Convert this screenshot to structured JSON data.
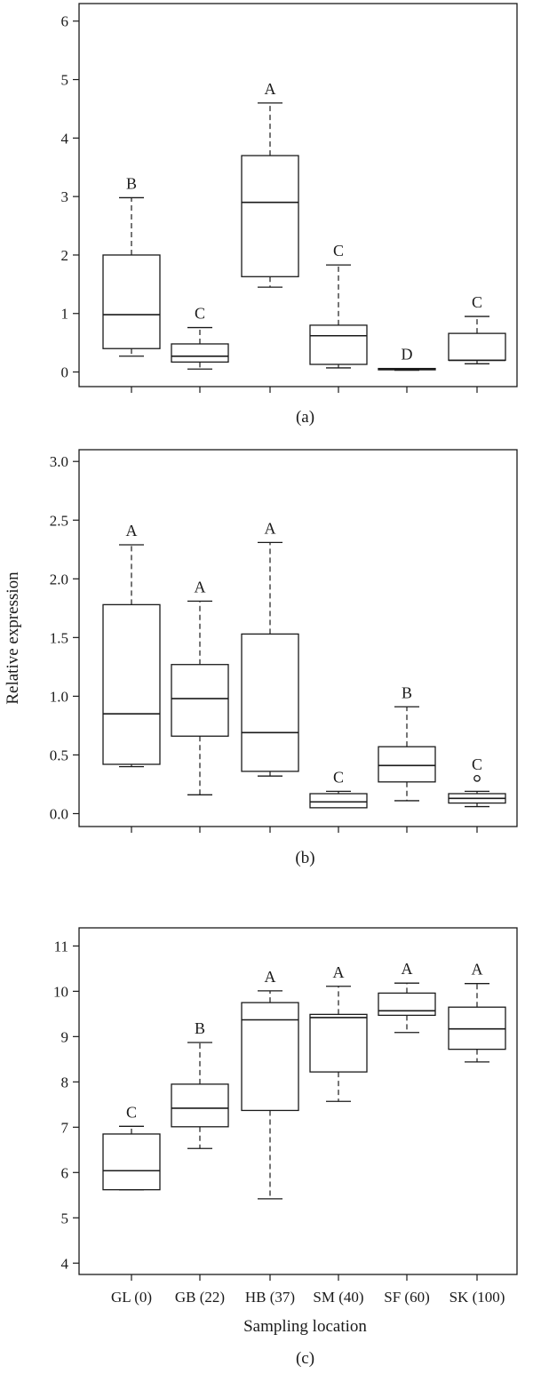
{
  "chart_data": [
    {
      "type": "box",
      "panel": "(a)",
      "ylim": [
        -0.25,
        6.3
      ],
      "yticks": [
        "0",
        "1",
        "2",
        "3",
        "4",
        "5",
        "6"
      ],
      "groups": [
        {
          "letter": "B",
          "whisker_low": 0.27,
          "q1": 0.4,
          "median": 0.98,
          "q3": 2.0,
          "whisker_high": 2.98,
          "outliers": []
        },
        {
          "letter": "C",
          "whisker_low": 0.05,
          "q1": 0.17,
          "median": 0.27,
          "q3": 0.48,
          "whisker_high": 0.76,
          "outliers": []
        },
        {
          "letter": "A",
          "whisker_low": 1.45,
          "q1": 1.63,
          "median": 2.9,
          "q3": 3.7,
          "whisker_high": 4.6,
          "outliers": []
        },
        {
          "letter": "C",
          "whisker_low": 0.07,
          "q1": 0.13,
          "median": 0.62,
          "q3": 0.8,
          "whisker_high": 1.83,
          "outliers": []
        },
        {
          "letter": "D",
          "whisker_low": 0.03,
          "q1": 0.04,
          "median": 0.05,
          "q3": 0.06,
          "whisker_high": 0.06,
          "outliers": []
        },
        {
          "letter": "C",
          "whisker_low": 0.14,
          "q1": 0.2,
          "median": 0.2,
          "q3": 0.66,
          "whisker_high": 0.95,
          "outliers": []
        }
      ]
    },
    {
      "type": "box",
      "panel": "(b)",
      "ylabel": "Relative expression",
      "ylim": [
        -0.11,
        3.1
      ],
      "yticks": [
        "0.0",
        "0.5",
        "1.0",
        "1.5",
        "2.0",
        "2.5",
        "3.0"
      ],
      "groups": [
        {
          "letter": "A",
          "whisker_low": 0.4,
          "q1": 0.42,
          "median": 0.85,
          "q3": 1.78,
          "whisker_high": 2.29,
          "outliers": []
        },
        {
          "letter": "A",
          "whisker_low": 0.16,
          "q1": 0.66,
          "median": 0.98,
          "q3": 1.27,
          "whisker_high": 1.81,
          "outliers": []
        },
        {
          "letter": "A",
          "whisker_low": 0.32,
          "q1": 0.36,
          "median": 0.69,
          "q3": 1.53,
          "whisker_high": 2.31,
          "outliers": []
        },
        {
          "letter": "C",
          "whisker_low": 0.05,
          "q1": 0.05,
          "median": 0.1,
          "q3": 0.17,
          "whisker_high": 0.19,
          "outliers": []
        },
        {
          "letter": "B",
          "whisker_low": 0.11,
          "q1": 0.27,
          "median": 0.41,
          "q3": 0.57,
          "whisker_high": 0.91,
          "outliers": []
        },
        {
          "letter": "C",
          "whisker_low": 0.06,
          "q1": 0.09,
          "median": 0.13,
          "q3": 0.17,
          "whisker_high": 0.19,
          "outliers": [
            0.3
          ]
        }
      ]
    },
    {
      "type": "box",
      "panel": "(c)",
      "xlabel": "Sampling location",
      "ylim": [
        3.75,
        11.4
      ],
      "yticks": [
        "4",
        "5",
        "6",
        "7",
        "8",
        "9",
        "10",
        "11"
      ],
      "categories": [
        "GL (0)",
        "GB (22)",
        "HB (37)",
        "SM (40)",
        "SF (60)",
        "SK (100)"
      ],
      "groups": [
        {
          "letter": "C",
          "whisker_low": 5.62,
          "q1": 5.62,
          "median": 6.04,
          "q3": 6.85,
          "whisker_high": 7.02,
          "outliers": []
        },
        {
          "letter": "B",
          "whisker_low": 6.53,
          "q1": 7.01,
          "median": 7.42,
          "q3": 7.95,
          "whisker_high": 8.87,
          "outliers": []
        },
        {
          "letter": "A",
          "whisker_low": 5.42,
          "q1": 7.37,
          "median": 9.37,
          "q3": 9.75,
          "whisker_high": 10.01,
          "outliers": []
        },
        {
          "letter": "A",
          "whisker_low": 7.57,
          "q1": 8.22,
          "median": 9.42,
          "q3": 9.49,
          "whisker_high": 10.11,
          "outliers": []
        },
        {
          "letter": "A",
          "whisker_low": 9.09,
          "q1": 9.47,
          "median": 9.57,
          "q3": 9.96,
          "whisker_high": 10.18,
          "outliers": []
        },
        {
          "letter": "A",
          "whisker_low": 8.44,
          "q1": 8.72,
          "median": 9.17,
          "q3": 9.65,
          "whisker_high": 10.17,
          "outliers": []
        }
      ]
    }
  ]
}
